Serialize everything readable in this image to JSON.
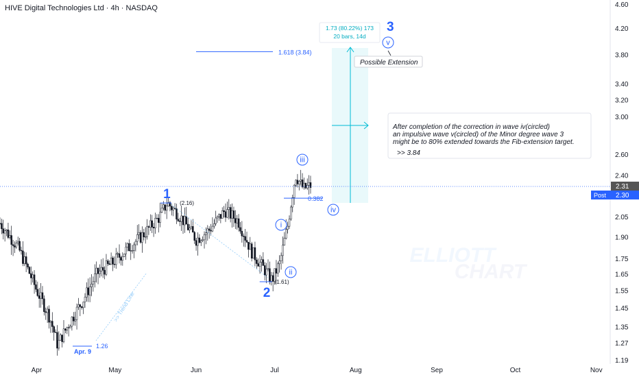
{
  "header": {
    "title": "HIVE Digital Technologies Ltd · 4h · NASDAQ"
  },
  "colors": {
    "accent": "#2962ff",
    "candle": "#131722",
    "projection": "#00bcd4",
    "projection_fill": "#e0f7fa",
    "price_tag": "#2962ff",
    "price_tag_dark": "#555555"
  },
  "chart_data": {
    "type": "candlestick",
    "title": "HIVE Digital Technologies Ltd · 4h · NASDAQ",
    "x_ticks": [
      "Apr",
      "May",
      "Jun",
      "Jul",
      "Aug",
      "Sep",
      "Oct",
      "Nov"
    ],
    "y_ticks": [
      "4.60",
      "4.20",
      "3.80",
      "3.40",
      "3.20",
      "3.00",
      "2.60",
      "2.40",
      "2.05",
      "1.90",
      "1.75",
      "1.65",
      "1.55",
      "1.45",
      "1.35",
      "1.27",
      "1.19"
    ],
    "y_scale": "log",
    "ylim": [
      1.19,
      4.6
    ],
    "xlim": [
      "2025-03-18",
      "2025-11-05"
    ],
    "price_path": [
      [
        "2025-03-18",
        2.0
      ],
      [
        "2025-03-25",
        1.82
      ],
      [
        "2025-04-01",
        1.55
      ],
      [
        "2025-04-06",
        1.4
      ],
      [
        "2025-04-09",
        1.26
      ],
      [
        "2025-04-14",
        1.38
      ],
      [
        "2025-04-19",
        1.5
      ],
      [
        "2025-04-24",
        1.65
      ],
      [
        "2025-04-30",
        1.72
      ],
      [
        "2025-05-06",
        1.82
      ],
      [
        "2025-05-12",
        1.92
      ],
      [
        "2025-05-18",
        2.05
      ],
      [
        "2025-05-21",
        2.16
      ],
      [
        "2025-05-26",
        2.05
      ],
      [
        "2025-06-01",
        1.88
      ],
      [
        "2025-06-06",
        1.95
      ],
      [
        "2025-06-12",
        2.1
      ],
      [
        "2025-06-17",
        2.02
      ],
      [
        "2025-06-22",
        1.8
      ],
      [
        "2025-06-27",
        1.68
      ],
      [
        "2025-06-30",
        1.61
      ],
      [
        "2025-07-03",
        1.72
      ],
      [
        "2025-07-06",
        1.98
      ],
      [
        "2025-07-09",
        2.4
      ],
      [
        "2025-07-12",
        2.28
      ],
      [
        "2025-07-15",
        2.31
      ]
    ],
    "last_price": "2.31",
    "post_price": "2.30",
    "post_label": "Post",
    "wave_labels": [
      {
        "label": "1",
        "date": "2025-05-21",
        "price": 2.16,
        "value": "(2.16)"
      },
      {
        "label": "2",
        "date": "2025-06-30",
        "price": 1.61,
        "value": "(1.61)"
      },
      {
        "label": "3",
        "date": "2025-07-28",
        "price": 4.3
      },
      {
        "label": "i",
        "date": "2025-07-01",
        "price": 2.02
      },
      {
        "label": "ii",
        "date": "2025-07-01",
        "price": 1.63
      },
      {
        "label": "iii",
        "date": "2025-07-06",
        "price": 2.55
      },
      {
        "label": "iv",
        "date": "2025-07-16",
        "price": 2.1
      },
      {
        "label": "v",
        "date": "2025-07-28",
        "price": 3.95
      }
    ],
    "low_label": {
      "date": "Apr. 9",
      "value": "1.26"
    },
    "fib_extension": {
      "label": "1.618 (3.84)",
      "price": 3.84
    },
    "fib_retracement": {
      "label": "0.382"
    },
    "trend_line_label": ">> Trend Line",
    "projection": {
      "line1": "1.73 (80.22%) 173",
      "line2": "20 bars, 14d",
      "from_price": 2.19,
      "to_price": 3.95
    },
    "possible_extension": "Possible Extension",
    "note": {
      "lines": [
        "After completion of the correction in wave iv(circled)",
        "an impulsive wave v(circled) of the Minor degree wave 3",
        "might be to 80% extended towards the Fib-extension target."
      ],
      "target": ">> 3.84"
    },
    "watermark": [
      "ELLIOTT",
      "CHART"
    ]
  }
}
